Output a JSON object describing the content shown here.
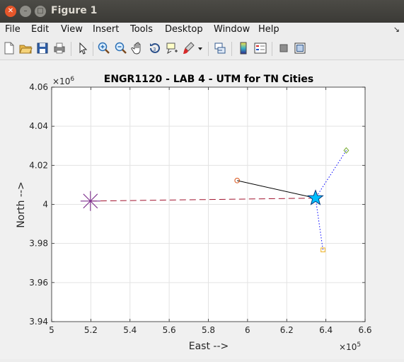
{
  "window": {
    "title": "Figure 1"
  },
  "menu": [
    "File",
    "Edit",
    "View",
    "Insert",
    "Tools",
    "Desktop",
    "Window",
    "Help"
  ],
  "toolbar_icons": [
    "new-figure-icon",
    "open-file-icon",
    "save-icon",
    "print-icon",
    "edit-plot-arrow-icon",
    "zoom-in-icon",
    "zoom-out-icon",
    "pan-hand-icon",
    "rotate-3d-icon",
    "data-cursor-icon",
    "brush-icon",
    "brush-dropdown-icon",
    "link-plot-icon",
    "insert-colorbar-icon",
    "insert-legend-icon",
    "hide-plot-tools-icon",
    "show-plot-tools-icon"
  ],
  "chart_data": {
    "type": "line",
    "title": "ENGR1120 - LAB 4 - UTM for TN Cities",
    "xlabel": "East -->",
    "ylabel": "North -->",
    "xlim": [
      500000,
      660000
    ],
    "ylim": [
      3940000,
      4060000
    ],
    "x_ticks": [
      "5",
      "5.2",
      "5.4",
      "5.6",
      "5.8",
      "6",
      "6.2",
      "6.4",
      "6.6"
    ],
    "y_ticks": [
      "3.94",
      "3.96",
      "3.98",
      "4",
      "4.02",
      "4.04",
      "4.06"
    ],
    "x_exponent_label": "×10",
    "x_exponent": "5",
    "y_exponent_label": "×10",
    "y_exponent": "6",
    "grid": true,
    "series": [
      {
        "marker": "star",
        "color": "#00bfff",
        "x": [
          634700
        ],
        "y": [
          4003200
        ]
      },
      {
        "marker": "plus-large",
        "color": "#7e2f8e",
        "x": [
          519800
        ],
        "y": [
          4001700
        ]
      },
      {
        "marker": "circle",
        "color": "#d95319",
        "x": [
          594700
        ],
        "y": [
          4012200
        ]
      },
      {
        "marker": "diamond",
        "color": "#77ac30",
        "x": [
          650400
        ],
        "y": [
          4027600
        ]
      },
      {
        "marker": "square",
        "color": "#edb120",
        "x": [
          638500
        ],
        "y": [
          3976700
        ]
      }
    ],
    "lines": [
      {
        "style": "dashed",
        "color": "#a2142f",
        "x": [
          519800,
          634700
        ],
        "y": [
          4001700,
          4003200
        ]
      },
      {
        "style": "solid",
        "color": "#000000",
        "x": [
          594700,
          634700
        ],
        "y": [
          4012200,
          4003200
        ]
      },
      {
        "style": "dotted",
        "color": "#0000ff",
        "x": [
          650400,
          634700,
          638500
        ],
        "y": [
          4027600,
          4003200,
          3976700
        ]
      }
    ]
  }
}
